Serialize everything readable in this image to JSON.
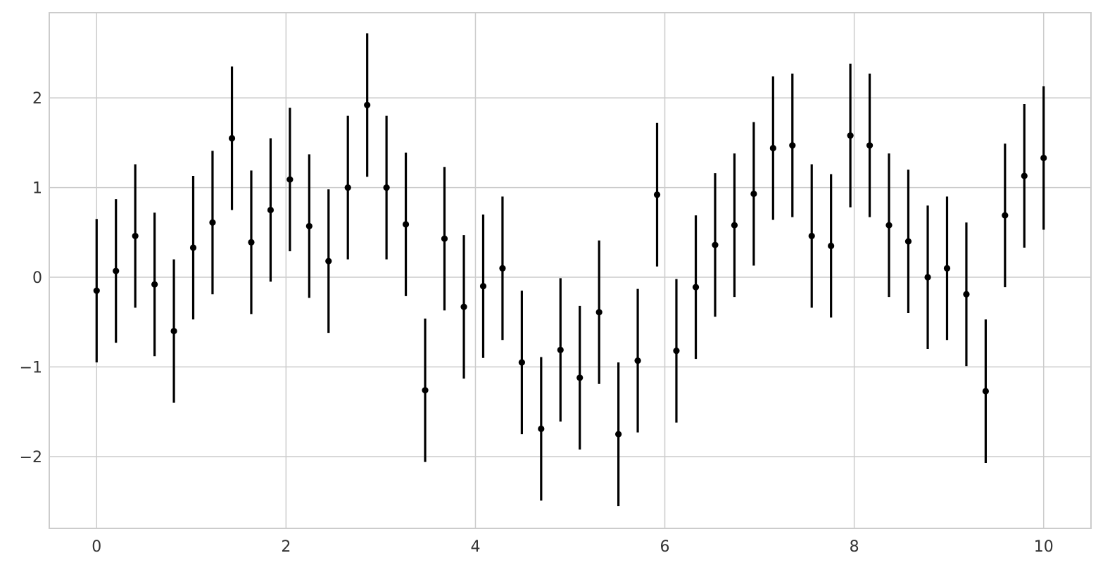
{
  "chart_data": {
    "type": "scatter",
    "title": "",
    "xlabel": "",
    "ylabel": "",
    "xlim": [
      -0.5,
      10.5
    ],
    "ylim": [
      -2.8,
      2.95
    ],
    "xticks": [
      0,
      2,
      4,
      6,
      8,
      10
    ],
    "yticks": [
      -2,
      -1,
      0,
      1,
      2
    ],
    "xtick_labels": [
      "0",
      "2",
      "4",
      "6",
      "8",
      "10"
    ],
    "ytick_labels": [
      "−2",
      "−1",
      "0",
      "1",
      "2"
    ],
    "grid": true,
    "legend": "none",
    "error_y": 0.8,
    "color": "#000000",
    "grid_color": "#cccccc",
    "series": [
      {
        "x": [
          0.0,
          0.204,
          0.408,
          0.612,
          0.816,
          1.02,
          1.224,
          1.429,
          1.633,
          1.837,
          2.041,
          2.245,
          2.449,
          2.653,
          2.857,
          3.061,
          3.265,
          3.469,
          3.673,
          3.878,
          4.082,
          4.286,
          4.49,
          4.694,
          4.898,
          5.102,
          5.306,
          5.51,
          5.714,
          5.918,
          6.122,
          6.327,
          6.531,
          6.735,
          6.939,
          7.143,
          7.347,
          7.551,
          7.755,
          7.959,
          8.163,
          8.367,
          8.571,
          8.776,
          8.98,
          9.184,
          9.388,
          9.592,
          9.796,
          10.0
        ],
        "y": [
          -0.15,
          0.07,
          0.46,
          -0.08,
          -0.6,
          0.33,
          0.61,
          1.55,
          0.39,
          0.75,
          1.09,
          0.57,
          0.18,
          1.0,
          1.92,
          1.0,
          0.59,
          -1.26,
          0.43,
          -0.33,
          -0.1,
          0.1,
          -0.95,
          -1.69,
          -0.81,
          -1.12,
          -0.39,
          -1.75,
          -0.93,
          0.92,
          -0.82,
          -0.11,
          0.36,
          0.58,
          0.93,
          1.44,
          1.47,
          0.46,
          0.35,
          1.58,
          1.47,
          0.58,
          0.4,
          0.0,
          0.1,
          -0.19,
          -1.27,
          0.69,
          1.13,
          1.33
        ]
      }
    ]
  }
}
